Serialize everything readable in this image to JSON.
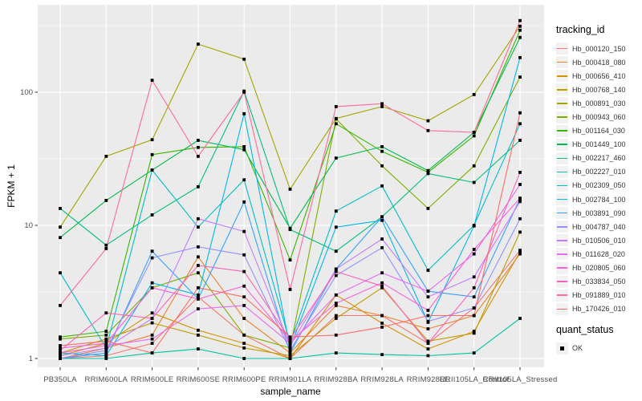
{
  "figure": {
    "legend": {
      "tracking_title": "tracking_id",
      "quant_title": "quant_status",
      "quant_value": "OK"
    },
    "style": {
      "panel_background": "#EBEBEB",
      "gridline_color": "#FFFFFF",
      "point_color": "#000000",
      "tick_label_color": "#4D4D4D",
      "legend_key_background": "#F2F2F2"
    }
  },
  "chart_data": {
    "type": "line",
    "title": "",
    "xlabel": "sample_name",
    "ylabel": "FPKM + 1",
    "y_scale": "log10",
    "ylim": [
      1,
      450
    ],
    "y_ticks": [
      1,
      10,
      100
    ],
    "grid": "major-and-minor-white-on-grey",
    "legend_position": "right",
    "point_shape": "filled-black-square",
    "quant_status": "OK",
    "categories": [
      "PB350LA",
      "RRIM600LA",
      "RRIM600LE",
      "RRIM600SE",
      "RRIM600PE",
      "RRIM901LA",
      "RRIM928BA",
      "RRIM928LA",
      "RRIM928LE",
      "RRII105LA_Control",
      "RRII105LA_Stressed"
    ],
    "series": [
      {
        "name": "Hb_000120_150",
        "color": "#F8766D",
        "values": [
          1.0,
          1.05,
          1.3,
          2.9,
          1.5,
          1.0,
          2.1,
          2.1,
          1.3,
          2.4,
          6.5
        ]
      },
      {
        "name": "Hb_000418_080",
        "color": "#EA8331",
        "values": [
          1.0,
          1.2,
          1.5,
          5.8,
          2.0,
          1.1,
          2.5,
          2.1,
          1.67,
          2.1,
          6.1
        ]
      },
      {
        "name": "Hb_000656_410",
        "color": "#D89000",
        "values": [
          1.05,
          1.3,
          2.2,
          1.63,
          1.3,
          1.0,
          3.0,
          1.84,
          1.18,
          1.6,
          6.3
        ]
      },
      {
        "name": "Hb_000768_140",
        "color": "#C09B00",
        "values": [
          1.1,
          1.4,
          1.85,
          1.5,
          1.2,
          1.05,
          2.0,
          3.4,
          1.35,
          1.55,
          8.9
        ]
      },
      {
        "name": "Hb_000891_030",
        "color": "#A3A500",
        "values": [
          9.7,
          33,
          44,
          230,
          177,
          18.7,
          63.5,
          78,
          61,
          96,
          313
        ]
      },
      {
        "name": "Hb_000943_060",
        "color": "#7CAE00",
        "values": [
          1.4,
          1.5,
          3.4,
          4.4,
          1.5,
          1.2,
          63,
          28,
          13.4,
          28,
          130
        ]
      },
      {
        "name": "Hb_001164_030",
        "color": "#39B600",
        "values": [
          1.45,
          1.6,
          34,
          38.5,
          39,
          5.5,
          58,
          36,
          25,
          47,
          292
        ]
      },
      {
        "name": "Hb_001449_100",
        "color": "#00BB4E",
        "values": [
          8.1,
          15.4,
          26,
          43.5,
          37,
          9.5,
          32,
          39,
          25.8,
          50,
          258
        ]
      },
      {
        "name": "Hb_002217_460",
        "color": "#00BF7D",
        "values": [
          13.4,
          7.1,
          12,
          19.5,
          102,
          9.3,
          6.4,
          11.6,
          24.5,
          21,
          43.5
        ]
      },
      {
        "name": "Hb_002227_010",
        "color": "#00C1A3",
        "values": [
          1.0,
          1.0,
          1.1,
          1.18,
          1.0,
          1.0,
          1.1,
          1.07,
          1.05,
          1.1,
          2.0
        ]
      },
      {
        "name": "Hb_002309_050",
        "color": "#00BFC4",
        "values": [
          4.4,
          1.2,
          26,
          9.7,
          22,
          1.3,
          12.8,
          19.8,
          4.6,
          10,
          58
        ]
      },
      {
        "name": "Hb_002784_100",
        "color": "#00B8E7",
        "values": [
          1.1,
          1.05,
          3.7,
          3.0,
          69,
          1.2,
          9.7,
          10.9,
          1.87,
          9.9,
          182
        ]
      },
      {
        "name": "Hb_003891_090",
        "color": "#35A2FF",
        "values": [
          1.0,
          1.1,
          6.4,
          2.8,
          15,
          1.1,
          4.7,
          11.6,
          3.2,
          2.9,
          15.9
        ]
      },
      {
        "name": "Hb_004787_040",
        "color": "#9590FF",
        "values": [
          1.0,
          1.15,
          5.7,
          6.9,
          6.0,
          1.15,
          4.2,
          6.8,
          1.9,
          2.4,
          11.2
        ]
      },
      {
        "name": "Hb_010506_010",
        "color": "#C77CFF",
        "values": [
          1.05,
          1.2,
          2.0,
          11.2,
          9.0,
          1.25,
          4.7,
          7.9,
          2.9,
          4.1,
          15.1
        ]
      },
      {
        "name": "Hb_011628_020",
        "color": "#E76BF3",
        "values": [
          1.1,
          1.25,
          1.4,
          2.36,
          2.5,
          1.3,
          3.0,
          4.4,
          3.2,
          6.1,
          20.3
        ]
      },
      {
        "name": "Hb_020805_060",
        "color": "#FA62DB",
        "values": [
          1.2,
          1.3,
          3.4,
          2.8,
          3.5,
          1.35,
          2.6,
          3.7,
          2.3,
          6.6,
          16
        ]
      },
      {
        "name": "Hb_033834_050",
        "color": "#FF62BC",
        "values": [
          1.15,
          2.2,
          2.0,
          5.0,
          4.5,
          1.4,
          4.5,
          3.5,
          1.3,
          3.4,
          25
        ]
      },
      {
        "name": "Hb_091889_010",
        "color": "#FF6A98",
        "values": [
          2.5,
          6.7,
          123,
          33,
          100,
          3.3,
          78,
          82,
          51.5,
          50,
          345
        ]
      },
      {
        "name": "Hb_170426_010",
        "color": "#FF6C67",
        "values": [
          1.25,
          1.35,
          1.1,
          3.4,
          2.9,
          1.45,
          1.5,
          1.72,
          2.1,
          2.1,
          70
        ]
      }
    ]
  }
}
